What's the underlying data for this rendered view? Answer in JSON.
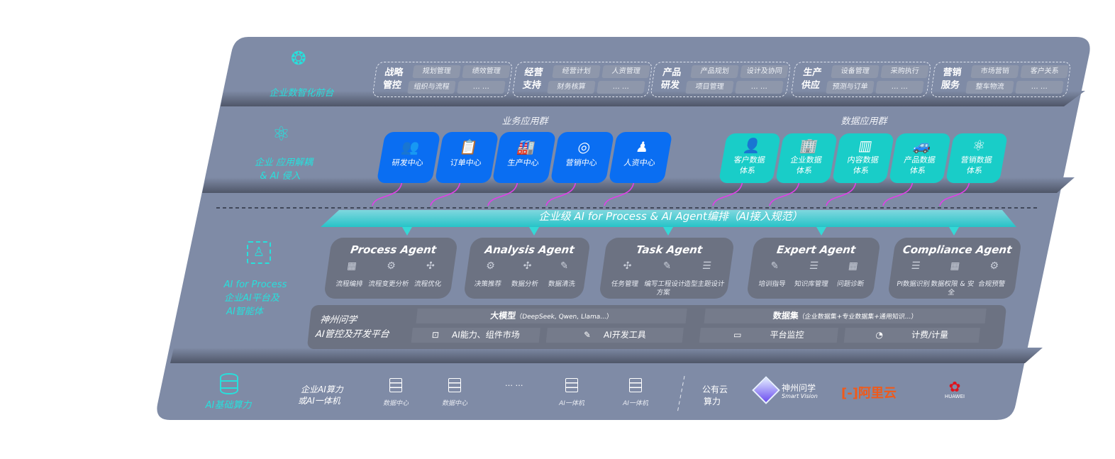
{
  "colors": {
    "panel": "#7f8ba6",
    "teal": "#27e0dc",
    "blue": "#0a6ef2",
    "teal_card": "#19cdc8",
    "magenta": "#e040e8",
    "agent_card": "#6c7282"
  },
  "frontend": {
    "label": "企业数智化前台",
    "icon": "brain-icon",
    "groups": [
      {
        "title": "战略 管控",
        "items": [
          "规划管理",
          "绩效管理",
          "组织与流程",
          "… …"
        ]
      },
      {
        "title": "经营 支持",
        "items": [
          "经营计划",
          "人资管理",
          "财务核算",
          "… …"
        ]
      },
      {
        "title": "产品 研发",
        "items": [
          "产品规划",
          "设计及协同",
          "项目管理",
          "… …"
        ]
      },
      {
        "title": "生产 供应",
        "items": [
          "设备管理",
          "采购执行",
          "预测与订单",
          "… …"
        ]
      },
      {
        "title": "营销 服务",
        "items": [
          "市场营销",
          "客户关系",
          "整车物流",
          "… …"
        ]
      }
    ]
  },
  "apps": {
    "label_1": "企业 应用解耦",
    "label_2": "& AI 侵入",
    "icon": "molecule-icon",
    "business_title": "业务应用群",
    "business": [
      {
        "label": "研发中心",
        "icon": "users-icon"
      },
      {
        "label": "订单中心",
        "icon": "clipboard-icon"
      },
      {
        "label": "生产中心",
        "icon": "factory-icon"
      },
      {
        "label": "营销中心",
        "icon": "target-icon"
      },
      {
        "label": "人资中心",
        "icon": "people-icon"
      }
    ],
    "data_title": "数据应用群",
    "data": [
      {
        "l1": "客户数据",
        "l2": "体系",
        "icon": "user-icon"
      },
      {
        "l1": "企业数据",
        "l2": "体系",
        "icon": "building-icon"
      },
      {
        "l1": "内容数据",
        "l2": "体系",
        "icon": "books-icon"
      },
      {
        "l1": "产品数据",
        "l2": "体系",
        "icon": "car-icon"
      },
      {
        "l1": "营销数据",
        "l2": "体系",
        "icon": "atom-icon"
      }
    ]
  },
  "banner": "企业级 AI for Process & AI Agent编排（AI接入规范）",
  "process": {
    "label_1": "AI for Process",
    "label_2": "企业AI平台及",
    "label_3": "AI智能体",
    "icon": "face-scan-icon",
    "agents": [
      {
        "title": "Process Agent",
        "items": [
          "流程编排",
          "流程变更分析",
          "流程优化"
        ],
        "icons": [
          "chart-window-icon",
          "list-settings-icon",
          "optimize-icon"
        ]
      },
      {
        "title": "Analysis Agent",
        "items": [
          "决策推荐",
          "数据分析",
          "数据清洗"
        ],
        "icons": [
          "head-idea-icon",
          "atom-icon",
          "data-clean-icon"
        ]
      },
      {
        "title": "Task Agent",
        "items": [
          "任务管理",
          "编写工程设计方案",
          "造型主题设计"
        ],
        "icons": [
          "network-icon",
          "cloud-icon",
          "checklist-icon"
        ]
      },
      {
        "title": "Expert Agent",
        "items": [
          "培训指导",
          "知识库管理",
          "问题诊断"
        ],
        "icons": [
          "training-icon",
          "layers-icon",
          "diagnosis-icon"
        ]
      },
      {
        "title": "Compliance Agent",
        "items": [
          "PI数据识别",
          "数据权限 & 安全",
          "合规预警"
        ],
        "icons": [
          "id-card-icon",
          "shield-icon",
          "alert-icon"
        ]
      }
    ],
    "platform": {
      "title_1": "神州问学",
      "title_2": "AI管控及开发平台",
      "llm_title": "大模型",
      "llm_note": "（DeepSeek, Qwen, Llama...）",
      "market": "AI能力、组件市场",
      "devtools": "AI开发工具",
      "dataset_title": "数据集",
      "dataset_note": "（企业数据集+专业数据集+通用知识...）",
      "monitor": "平台监控",
      "billing": "计费/计量"
    }
  },
  "infra": {
    "label": "AI基础算力",
    "icon": "database-icon",
    "onprem_1": "企业AI算力",
    "onprem_2": "或AI一体机",
    "servers": [
      "数据中心",
      "数据中心",
      "AI一体机",
      "AI一体机"
    ],
    "ellipsis": "… …",
    "cloud_1": "公有云",
    "cloud_2": "算力",
    "vendors": {
      "shenzhou": "神州问学",
      "shenzhou_sub": "Smart Vision",
      "aliyun": "阿里云",
      "huawei": "HUAWEI"
    }
  }
}
